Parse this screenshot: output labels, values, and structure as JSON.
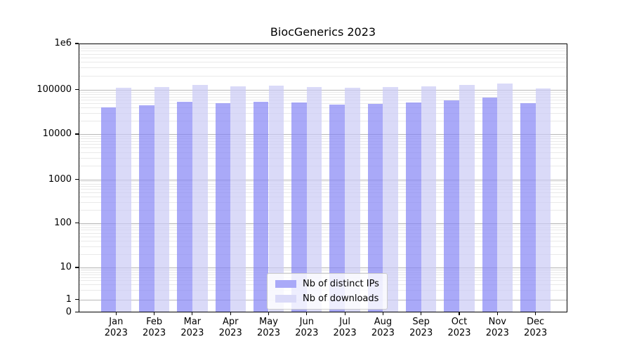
{
  "chart_data": {
    "type": "bar",
    "title": "BiocGenerics 2023",
    "yscale": "symlog",
    "grid": true,
    "ylim": [
      0,
      1000000
    ],
    "legend_position": "lower center",
    "categories": [
      "Jan",
      "Feb",
      "Mar",
      "Apr",
      "May",
      "Jun",
      "Jul",
      "Aug",
      "Sep",
      "Oct",
      "Nov",
      "Dec"
    ],
    "category_sublabel": "2023",
    "ytick_labels": [
      "1e6",
      "100000",
      "10000",
      "1000",
      "100",
      "10",
      "1",
      "0"
    ],
    "series": [
      {
        "name": "Nb of distinct IPs",
        "color": "#a9a9f8",
        "fill": "rgba(132,132,245,0.7)",
        "values": [
          39500,
          44000,
          53000,
          50500,
          53500,
          51500,
          47000,
          47500,
          52000,
          57000,
          66500,
          49000
        ]
      },
      {
        "name": "Nb of downloads",
        "color": "#dadaf8",
        "fill": "rgba(202,202,245,0.7)",
        "values": [
          110000,
          116000,
          129000,
          118000,
          123500,
          115000,
          112000,
          113500,
          118000,
          125000,
          138000,
          106000
        ]
      }
    ],
    "style": {
      "grid_major_color": "#b8b8b8",
      "grid_minor_color": "#e9e9e9",
      "spine_color": "#000000",
      "background": "#ffffff"
    }
  }
}
